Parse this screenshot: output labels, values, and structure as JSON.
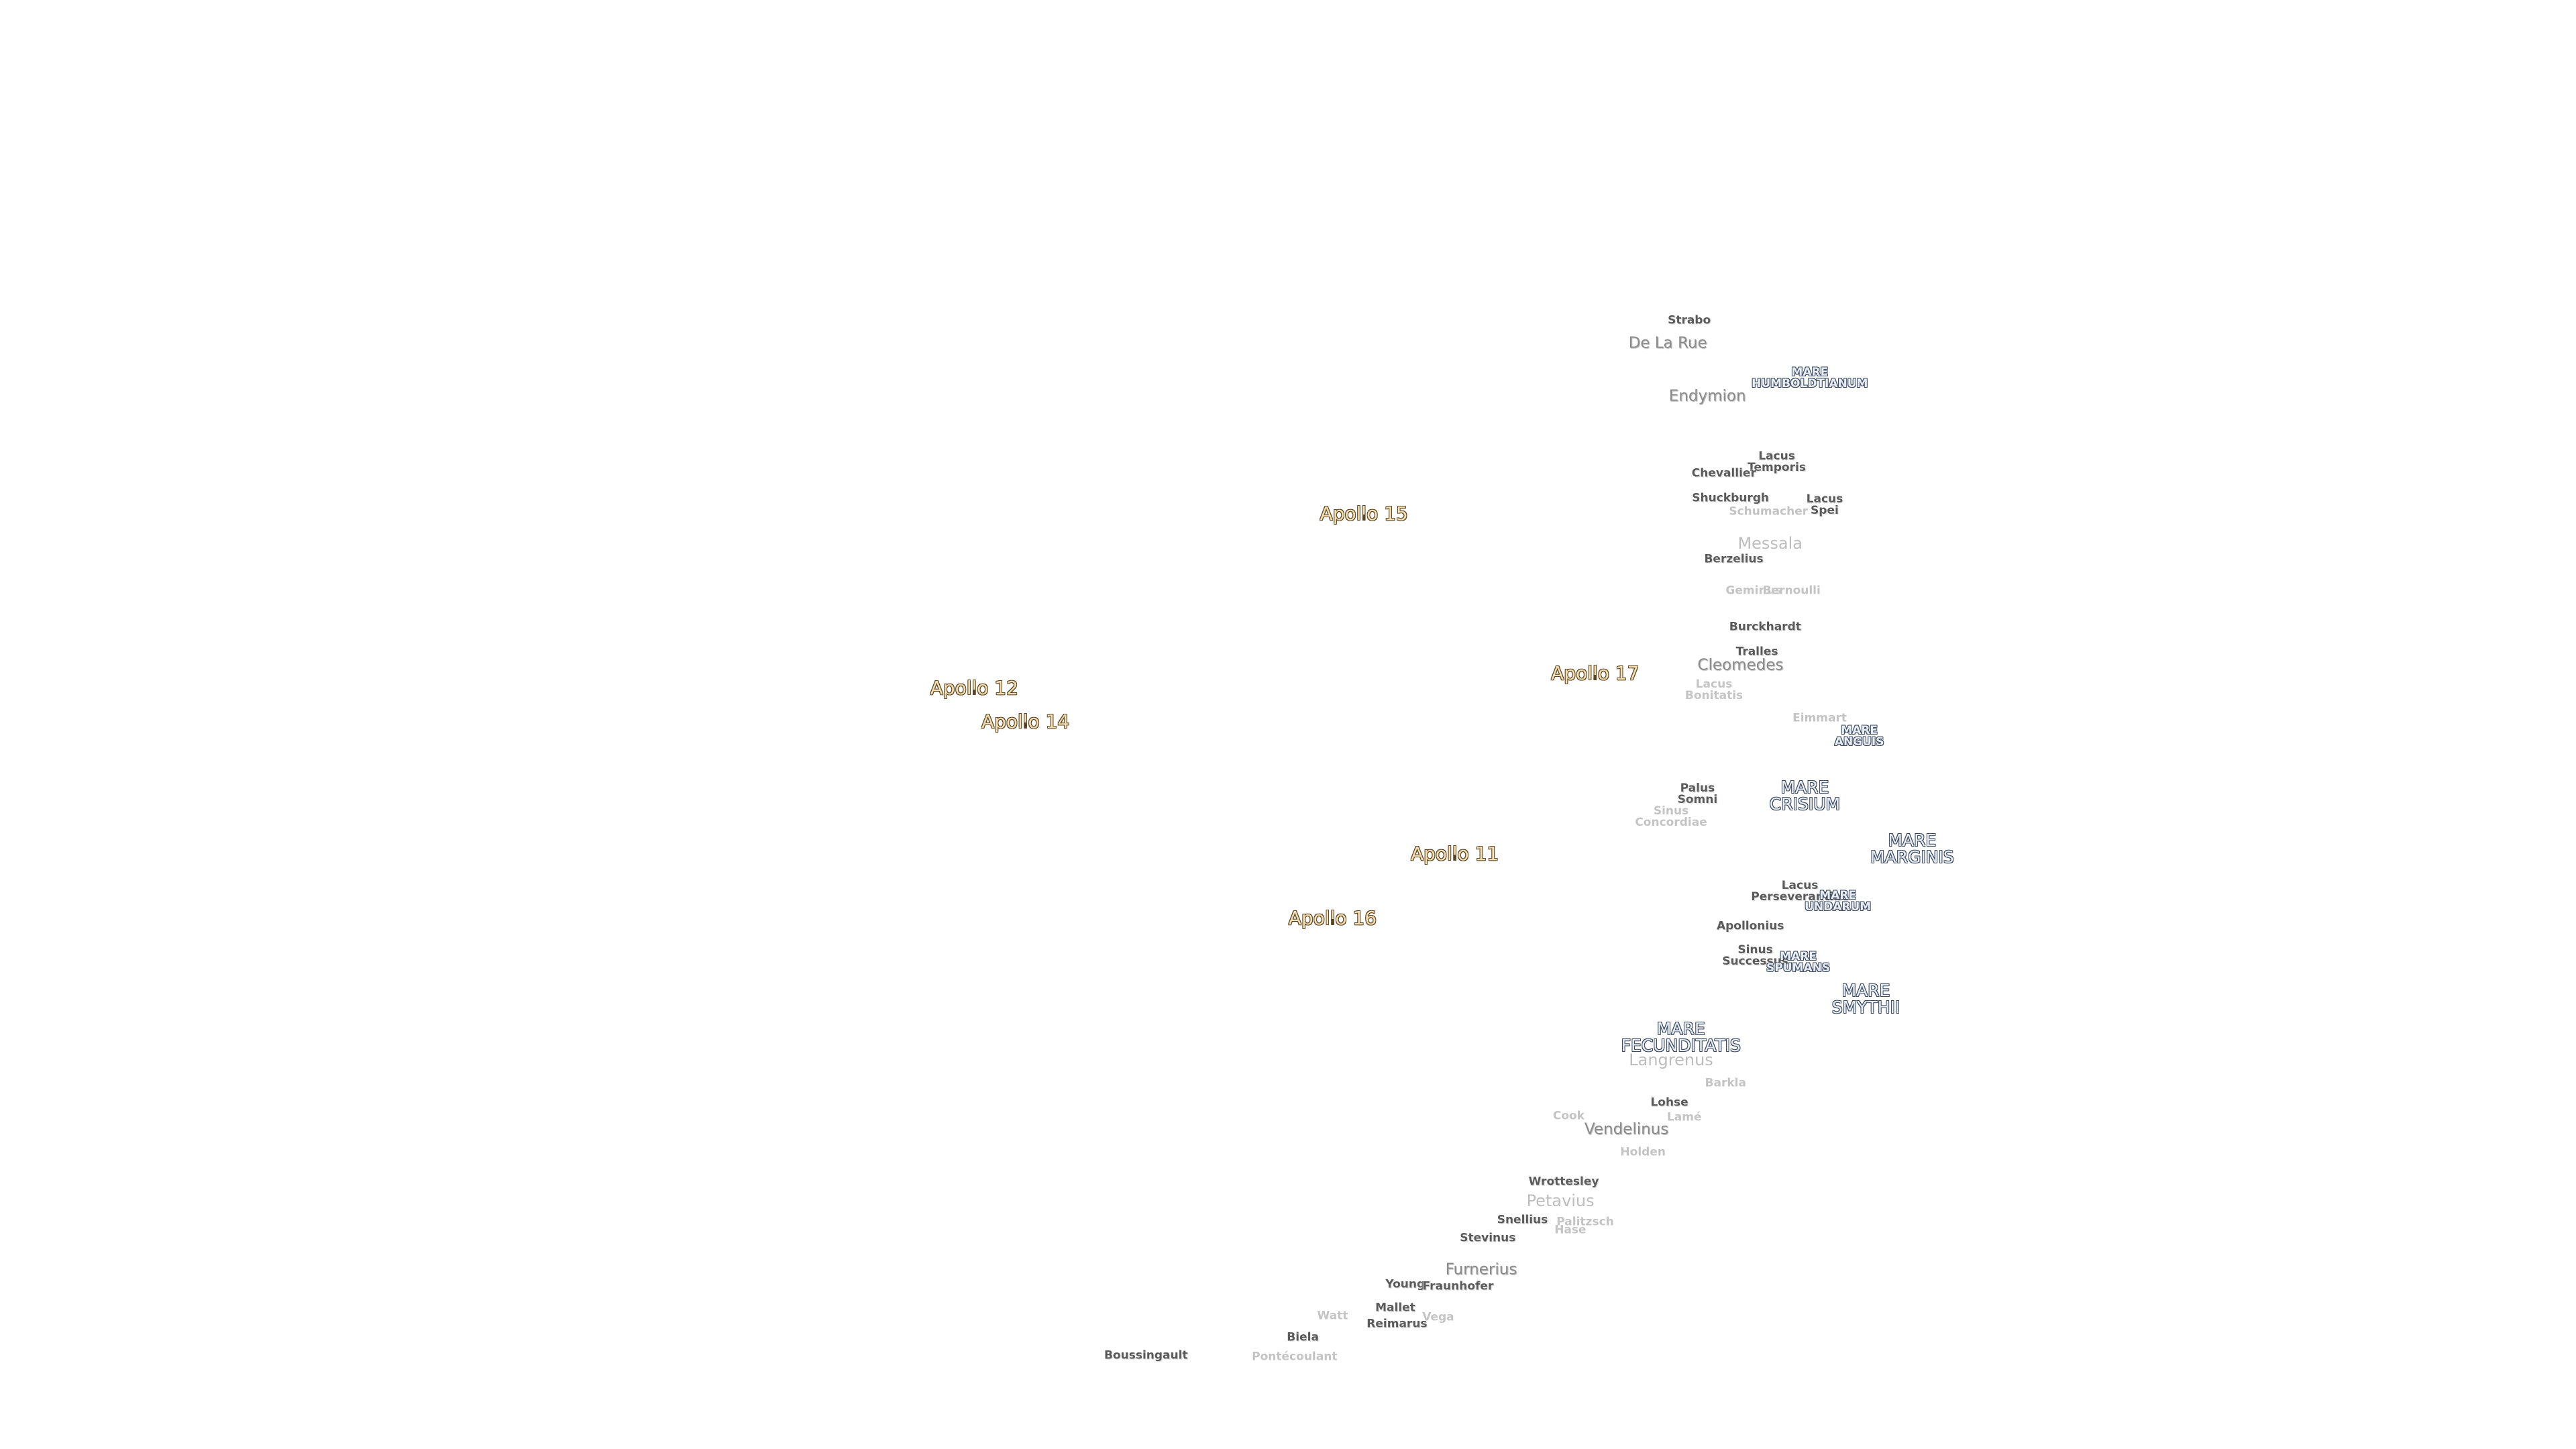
{
  "map": {
    "labels": [
      [
        "Strabo"
      ],
      [
        "De La Rue"
      ],
      [
        "MARE",
        "HUMBOLDTIANUM"
      ],
      [
        "Endymion"
      ],
      [
        "Lacus",
        "Temporis"
      ],
      [
        "Chevallier"
      ],
      [
        "Shuckburgh"
      ],
      [
        "Lacus",
        "Spei"
      ],
      [
        "Schumacher"
      ],
      [
        "Messala"
      ],
      [
        "Berzelius"
      ],
      [
        "Geminus"
      ],
      [
        "Bernoulli"
      ],
      [
        "Burckhardt"
      ],
      [
        "Tralles"
      ],
      [
        "Cleomedes"
      ],
      [
        "Lacus",
        "Bonitatis"
      ],
      [
        "Eimmart"
      ],
      [
        "MARE",
        "ANGUIS"
      ],
      [
        "Palus",
        "Somni"
      ],
      [
        "MARE",
        "CRISIUM"
      ],
      [
        "Sinus",
        "Concordiae"
      ],
      [
        "MARE",
        "MARGINIS"
      ],
      [
        "Lacus",
        "Perseverantiae"
      ],
      [
        "MARE",
        "UNDARUM"
      ],
      [
        "Apollonius"
      ],
      [
        "Sinus",
        "Successus"
      ],
      [
        "MARE",
        "SPUMANS"
      ],
      [
        "MARE",
        "SMYTHII"
      ],
      [
        "MARE",
        "FECUNDITATIS"
      ],
      [
        "Langrenus"
      ],
      [
        "Barkla"
      ],
      [
        "Lohse"
      ],
      [
        "Cook"
      ],
      [
        "Lamé"
      ],
      [
        "Vendelinus"
      ],
      [
        "Holden"
      ],
      [
        "Wrottesley"
      ],
      [
        "Petavius"
      ],
      [
        "Snellius"
      ],
      [
        "Palitzsch"
      ],
      [
        "Hase"
      ],
      [
        "Stevinus"
      ],
      [
        "Furnerius"
      ],
      [
        "Young"
      ],
      [
        "Fraunhofer"
      ],
      [
        "Mallet"
      ],
      [
        "Vega"
      ],
      [
        "Reimarus"
      ],
      [
        "Biela"
      ],
      [
        "Boussingault"
      ],
      [
        "Pontécoulant"
      ],
      [
        "Watt"
      ],
      [
        "Apollo 15"
      ],
      [
        "Apollo 17"
      ],
      [
        "Apollo 12"
      ],
      [
        "Apollo 14"
      ],
      [
        "Apollo 11"
      ],
      [
        "Apollo 16"
      ]
    ]
  }
}
